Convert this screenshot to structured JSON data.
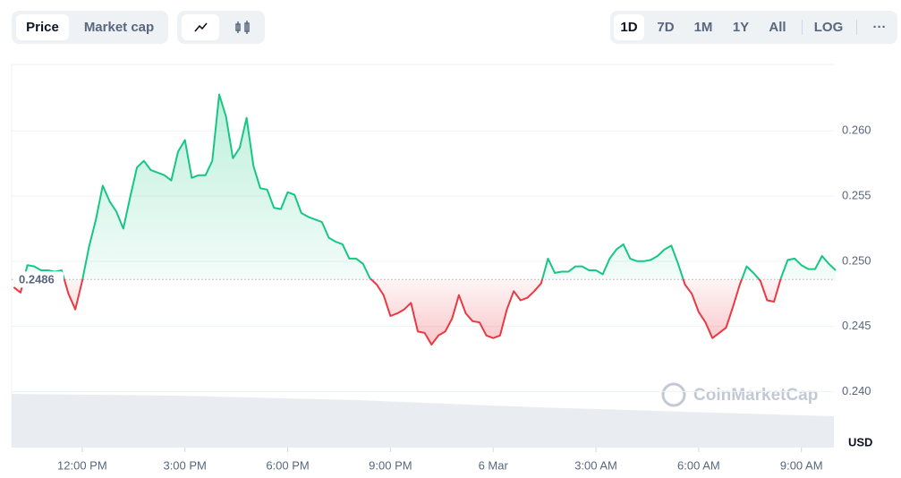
{
  "controls": {
    "price": "Price",
    "market_cap": "Market cap",
    "ranges": [
      "1D",
      "7D",
      "1M",
      "1Y",
      "All"
    ],
    "log": "LOG",
    "more": "···"
  },
  "chart_data": {
    "type": "line",
    "watermark": "CoinMarketCap",
    "unit": "USD",
    "baseline": 0.2486,
    "baseline_label": "0.2486",
    "up_color": "#16c784",
    "down_color": "#ea3943",
    "x": [
      10,
      10.2,
      10.4,
      10.6,
      10.8,
      11,
      11.2,
      11.4,
      11.6,
      11.8,
      12,
      12.2,
      12.4,
      12.6,
      12.8,
      13,
      13.2,
      13.4,
      13.6,
      13.8,
      14,
      14.2,
      14.4,
      14.6,
      14.8,
      15,
      15.2,
      15.4,
      15.6,
      15.8,
      16,
      16.2,
      16.4,
      16.6,
      16.8,
      17,
      17.2,
      17.4,
      17.6,
      17.8,
      18,
      18.2,
      18.4,
      18.6,
      18.8,
      19,
      19.2,
      19.4,
      19.6,
      19.8,
      20,
      20.2,
      20.4,
      20.6,
      20.8,
      21,
      21.2,
      21.4,
      21.6,
      21.8,
      22,
      22.2,
      22.4,
      22.6,
      22.8,
      23,
      23.2,
      23.4,
      23.6,
      23.8,
      24,
      24.2,
      24.4,
      24.6,
      24.8,
      25,
      25.2,
      25.4,
      25.6,
      25.8,
      26,
      26.2,
      26.4,
      26.6,
      26.8,
      27,
      27.2,
      27.4,
      27.6,
      27.8,
      28,
      28.2,
      28.4,
      28.6,
      28.8,
      29,
      29.2,
      29.4,
      29.6,
      29.8,
      30,
      30.2,
      30.4,
      30.6,
      30.8,
      31,
      31.2,
      31.4,
      31.6,
      31.8,
      32,
      32.2,
      32.4,
      32.6,
      32.8,
      33,
      33.2,
      33.4,
      33.6,
      33.8,
      34
    ],
    "values": [
      0.248,
      0.2476,
      0.2497,
      0.2496,
      0.2493,
      0.2493,
      0.2492,
      0.2493,
      0.2475,
      0.2463,
      0.2485,
      0.2511,
      0.2532,
      0.2558,
      0.2546,
      0.2538,
      0.2525,
      0.2549,
      0.2572,
      0.2577,
      0.257,
      0.2568,
      0.2566,
      0.2562,
      0.2584,
      0.2593,
      0.2564,
      0.2566,
      0.2566,
      0.2577,
      0.2628,
      0.2611,
      0.2579,
      0.2587,
      0.261,
      0.2573,
      0.2556,
      0.2555,
      0.2541,
      0.254,
      0.2553,
      0.2551,
      0.2537,
      0.2534,
      0.2532,
      0.253,
      0.2518,
      0.2515,
      0.2513,
      0.2502,
      0.2502,
      0.2498,
      0.2487,
      0.2482,
      0.2474,
      0.2458,
      0.246,
      0.2463,
      0.2468,
      0.2446,
      0.2445,
      0.2436,
      0.2443,
      0.2446,
      0.2456,
      0.2474,
      0.246,
      0.2454,
      0.2453,
      0.2443,
      0.2441,
      0.2443,
      0.2463,
      0.2477,
      0.247,
      0.2472,
      0.2477,
      0.2483,
      0.2502,
      0.2491,
      0.2492,
      0.2492,
      0.2496,
      0.2496,
      0.2493,
      0.2493,
      0.249,
      0.2502,
      0.2509,
      0.2513,
      0.2502,
      0.25,
      0.25,
      0.2501,
      0.2504,
      0.2509,
      0.2512,
      0.2498,
      0.2482,
      0.2475,
      0.2461,
      0.2453,
      0.2441,
      0.2445,
      0.2449,
      0.2465,
      0.2482,
      0.2496,
      0.2491,
      0.2485,
      0.247,
      0.2469,
      0.2487,
      0.2501,
      0.2502,
      0.2497,
      0.2494,
      0.2494,
      0.2504,
      0.2498,
      0.2493
    ],
    "xlim": [
      9.94,
      34
    ],
    "xticks": [
      {
        "value": 12,
        "label": "12:00 PM"
      },
      {
        "value": 15,
        "label": "3:00 PM"
      },
      {
        "value": 18,
        "label": "6:00 PM"
      },
      {
        "value": 21,
        "label": "9:00 PM"
      },
      {
        "value": 24,
        "label": "6 Mar"
      },
      {
        "value": 27,
        "label": "3:00 AM"
      },
      {
        "value": 30,
        "label": "6:00 AM"
      },
      {
        "value": 33,
        "label": "9:00 AM"
      }
    ],
    "ylim": [
      0.2357,
      0.2651
    ],
    "yticks": [
      {
        "value": 0.24,
        "label": "0.240"
      },
      0.245,
      {
        "value": 0.25,
        "label": "0.250"
      },
      0.255,
      {
        "value": 0.26,
        "label": "0.260"
      }
    ],
    "grid": true
  }
}
